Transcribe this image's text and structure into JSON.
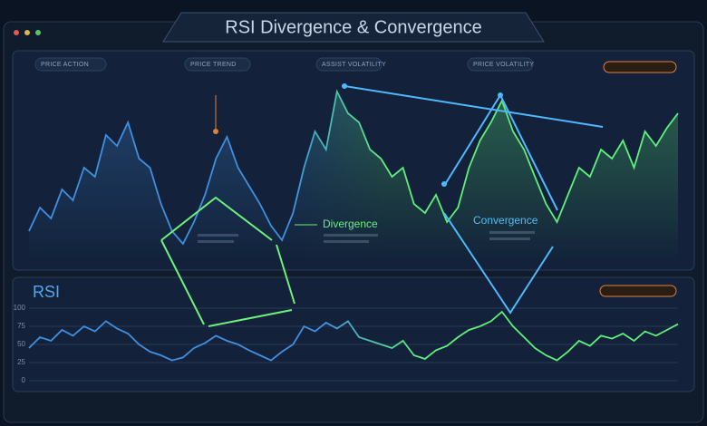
{
  "window": {
    "title": "RSI Divergence & Convergence"
  },
  "chart_data": [
    {
      "type": "line",
      "panel_labels": [
        "PRICE ACTION",
        "PRICE TREND",
        "ASSIST VOLATILITY",
        "PRICE VOLATILITY"
      ],
      "annotations": [
        "Divergence",
        "Convergence"
      ],
      "values": [
        15,
        28,
        22,
        38,
        32,
        50,
        45,
        68,
        62,
        75,
        55,
        50,
        30,
        15,
        8,
        20,
        35,
        55,
        67,
        50,
        40,
        30,
        18,
        10,
        25,
        50,
        70,
        60,
        92,
        80,
        75,
        60,
        55,
        45,
        50,
        30,
        25,
        35,
        20,
        28,
        50,
        65,
        75,
        87,
        70,
        60,
        45,
        30,
        20,
        35,
        50,
        45,
        60,
        55,
        65,
        50,
        70,
        62,
        72,
        80
      ],
      "ylim": [
        0,
        100
      ],
      "color": "#3f8fe0",
      "color_end": "#5ef07a"
    },
    {
      "type": "line",
      "title": "RSI",
      "values": [
        45,
        60,
        55,
        70,
        62,
        75,
        68,
        82,
        72,
        65,
        50,
        40,
        35,
        28,
        32,
        45,
        52,
        62,
        55,
        50,
        42,
        35,
        28,
        40,
        50,
        75,
        68,
        80,
        72,
        82,
        60,
        55,
        50,
        45,
        55,
        35,
        30,
        42,
        48,
        60,
        70,
        75,
        82,
        95,
        75,
        60,
        45,
        35,
        28,
        40,
        55,
        48,
        62,
        58,
        65,
        55,
        68,
        62,
        70,
        78
      ],
      "ylim": [
        0,
        100
      ],
      "yticks": [
        0,
        25,
        50,
        75,
        100
      ],
      "grid": true,
      "color": "#3f8fe0",
      "color_end": "#5ef07a"
    }
  ]
}
